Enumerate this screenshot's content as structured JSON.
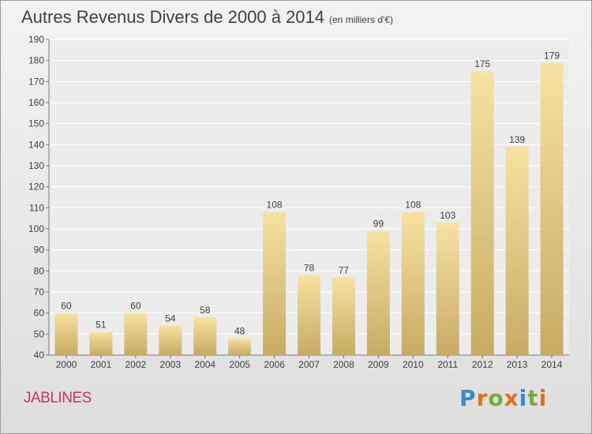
{
  "header": {
    "title": "Autres Revenus Divers de 2000 à 2014",
    "unit": "(en milliers d'€)"
  },
  "footer": {
    "commune": "JABLINES",
    "brand": "Proxiti"
  },
  "colors": {
    "bar_top": "#f6e2a2",
    "bar_bottom": "#c8ab62",
    "text": "#404040",
    "commune": "#cc3366",
    "brand_letters": [
      "#3f88c8",
      "#e0701c",
      "#7aa93b",
      "#e0701c",
      "#3f88c8",
      "#7aa93b",
      "#e0701c"
    ]
  },
  "chart_data": {
    "type": "bar",
    "title": "Autres Revenus Divers de 2000 à 2014",
    "subtitle": "(en milliers d'€)",
    "xlabel": "",
    "ylabel": "",
    "categories": [
      "2000",
      "2001",
      "2002",
      "2003",
      "2004",
      "2005",
      "2006",
      "2007",
      "2008",
      "2009",
      "2010",
      "2011",
      "2012",
      "2013",
      "2014"
    ],
    "values": [
      60,
      51,
      60,
      54,
      58,
      48,
      108,
      78,
      77,
      99,
      108,
      103,
      175,
      139,
      179
    ],
    "ylim": [
      40,
      190
    ],
    "ytick_step": 10,
    "grid": true,
    "legend": "none"
  }
}
